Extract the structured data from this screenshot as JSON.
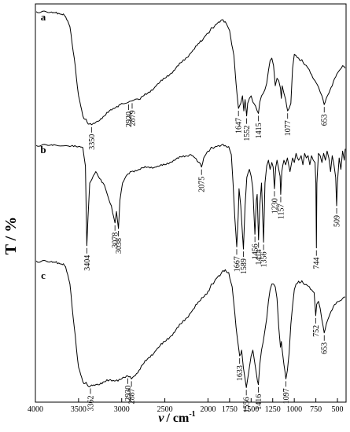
{
  "chart_data": {
    "type": "line",
    "xlabel_symbol": "ν",
    "xlabel_unit": "/ cm",
    "xlabel_exp": "-1",
    "ylabel": "T / %",
    "xlim": [
      4000,
      400
    ],
    "x_axis_reversed": true,
    "xticks": [
      "4000",
      "3500",
      "3000",
      "2500",
      "2000",
      "1750",
      "1500",
      "1250",
      "1000",
      "750",
      "500"
    ],
    "xtick_values": [
      4000,
      3500,
      3000,
      2500,
      2000,
      1750,
      1500,
      1250,
      1000,
      750,
      500
    ],
    "grid": false,
    "y_scale": "transmittance, arbitrary offset per spectrum",
    "series": [
      {
        "name": "a",
        "peaks": [
          "3350",
          "2920",
          "2879",
          "1647",
          "1552",
          "1415",
          "1077",
          "653"
        ],
        "x": [
          3990,
          3800,
          3700,
          3650,
          3600,
          3550,
          3500,
          3450,
          3400,
          3350,
          3300,
          3200,
          3100,
          3000,
          2920,
          2879,
          2800,
          2700,
          2600,
          2500,
          2400,
          2300,
          2200,
          2100,
          2050,
          2000,
          1950,
          1900,
          1850,
          1800,
          1750,
          1700,
          1675,
          1647,
          1620,
          1600,
          1585,
          1570,
          1552,
          1540,
          1520,
          1500,
          1480,
          1450,
          1430,
          1415,
          1400,
          1380,
          1360,
          1340,
          1320,
          1300,
          1280,
          1260,
          1240,
          1220,
          1200,
          1180,
          1160,
          1150,
          1140,
          1120,
          1100,
          1077,
          1060,
          1040,
          1020,
          1000,
          980,
          950,
          900,
          850,
          800,
          760,
          720,
          700,
          680,
          653,
          630,
          600,
          560,
          520,
          480,
          440,
          410
        ],
        "y": [
          97,
          96,
          95,
          93,
          85,
          60,
          30,
          14,
          9,
          7,
          9,
          14,
          20,
          24,
          25,
          26,
          27,
          32,
          38,
          44,
          50,
          57,
          64,
          72,
          76,
          80,
          84,
          87,
          90,
          89,
          82,
          62,
          40,
          20,
          24,
          30,
          18,
          27,
          14,
          24,
          28,
          30,
          25,
          22,
          18,
          16,
          25,
          30,
          32,
          35,
          40,
          50,
          58,
          60,
          54,
          38,
          44,
          42,
          36,
          28,
          38,
          32,
          27,
          18,
          20,
          24,
          52,
          63,
          62,
          60,
          57,
          53,
          47,
          42,
          37,
          33,
          30,
          23,
          28,
          32,
          38,
          45,
          50,
          54,
          52
        ]
      },
      {
        "name": "b",
        "peaks": [
          "3404",
          "3078",
          "3038",
          "2075",
          "1667",
          "1589",
          "1456",
          "1414",
          "1356",
          "1230",
          "1157",
          "744",
          "509"
        ],
        "x": [
          3990,
          3800,
          3600,
          3500,
          3450,
          3420,
          3404,
          3390,
          3370,
          3300,
          3200,
          3120,
          3078,
          3060,
          3038,
          3020,
          2990,
          2950,
          2900,
          2800,
          2700,
          2600,
          2500,
          2400,
          2300,
          2200,
          2150,
          2100,
          2075,
          2050,
          2000,
          1950,
          1900,
          1850,
          1800,
          1760,
          1730,
          1710,
          1690,
          1667,
          1650,
          1640,
          1620,
          1600,
          1589,
          1570,
          1550,
          1520,
          1500,
          1480,
          1456,
          1440,
          1430,
          1414,
          1400,
          1380,
          1356,
          1340,
          1320,
          1300,
          1280,
          1260,
          1245,
          1230,
          1215,
          1200,
          1180,
          1165,
          1157,
          1145,
          1120,
          1100,
          1080,
          1050,
          1020,
          1000,
          980,
          950,
          920,
          900,
          880,
          860,
          840,
          820,
          800,
          780,
          760,
          750,
          744,
          738,
          720,
          700,
          680,
          660,
          640,
          620,
          600,
          580,
          560,
          540,
          520,
          509,
          500,
          480,
          460,
          440,
          420,
          410
        ],
        "y": [
          93,
          93,
          92,
          92,
          91,
          75,
          5,
          30,
          60,
          70,
          58,
          40,
          25,
          35,
          20,
          45,
          60,
          66,
          70,
          72,
          74,
          74,
          76,
          80,
          83,
          85,
          82,
          78,
          74,
          82,
          88,
          91,
          92,
          93,
          93,
          92,
          85,
          60,
          30,
          4,
          30,
          55,
          40,
          15,
          2,
          40,
          65,
          72,
          66,
          55,
          15,
          45,
          50,
          10,
          40,
          60,
          8,
          60,
          75,
          80,
          72,
          78,
          74,
          55,
          74,
          80,
          72,
          66,
          50,
          70,
          80,
          76,
          82,
          70,
          82,
          78,
          86,
          80,
          84,
          76,
          86,
          82,
          84,
          76,
          84,
          80,
          78,
          60,
          3,
          60,
          86,
          84,
          78,
          86,
          80,
          88,
          82,
          70,
          84,
          76,
          65,
          40,
          60,
          82,
          72,
          88,
          80,
          90
        ]
      },
      {
        "name": "c",
        "peaks": [
          "3362",
          "2930",
          "2887",
          "1633",
          "1556",
          "1416",
          "1097",
          "752",
          "653"
        ],
        "x": [
          3990,
          3800,
          3700,
          3650,
          3600,
          3550,
          3500,
          3450,
          3400,
          3362,
          3300,
          3200,
          3100,
          3000,
          2930,
          2887,
          2800,
          2700,
          2600,
          2500,
          2400,
          2300,
          2200,
          2100,
          2000,
          1950,
          1900,
          1850,
          1800,
          1760,
          1720,
          1690,
          1660,
          1633,
          1610,
          1590,
          1570,
          1556,
          1540,
          1520,
          1500,
          1480,
          1460,
          1440,
          1416,
          1400,
          1380,
          1360,
          1340,
          1320,
          1300,
          1280,
          1260,
          1240,
          1220,
          1200,
          1180,
          1160,
          1150,
          1140,
          1120,
          1097,
          1080,
          1060,
          1040,
          1020,
          1000,
          980,
          950,
          900,
          850,
          800,
          770,
          752,
          740,
          720,
          700,
          680,
          653,
          630,
          600,
          560,
          520,
          480,
          440,
          410
        ],
        "y": [
          96,
          95,
          94,
          92,
          80,
          50,
          22,
          12,
          10,
          9,
          10,
          12,
          13,
          14,
          16,
          14,
          20,
          28,
          34,
          40,
          46,
          53,
          60,
          68,
          75,
          80,
          84,
          87,
          90,
          88,
          78,
          60,
          42,
          30,
          34,
          22,
          14,
          8,
          14,
          22,
          30,
          34,
          26,
          18,
          10,
          24,
          34,
          40,
          48,
          56,
          68,
          76,
          80,
          80,
          78,
          70,
          50,
          36,
          40,
          34,
          24,
          14,
          20,
          32,
          52,
          65,
          76,
          80,
          82,
          81,
          79,
          76,
          74,
          58,
          66,
          68,
          63,
          55,
          46,
          52,
          57,
          62,
          66,
          68,
          70,
          71
        ]
      }
    ]
  }
}
